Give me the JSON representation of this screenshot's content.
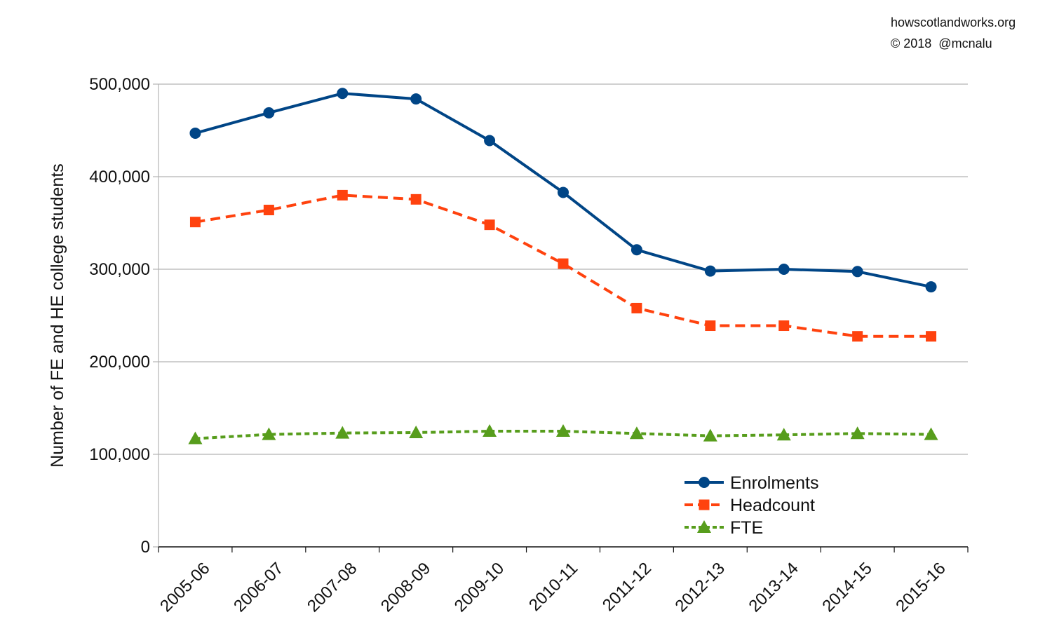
{
  "credits": {
    "site": "howscotlandworks.org",
    "copyright": "© 2018  @mcnalu"
  },
  "chart_data": {
    "type": "line",
    "title": "",
    "xlabel": "",
    "ylabel": "Number of FE and HE college students",
    "categories": [
      "2005-06",
      "2006-07",
      "2007-08",
      "2008-09",
      "2009-10",
      "2010-11",
      "2011-12",
      "2012-13",
      "2013-14",
      "2014-15",
      "2015-16"
    ],
    "ylim": [
      0,
      500000
    ],
    "yticks": [
      0,
      100000,
      200000,
      300000,
      400000,
      500000
    ],
    "ytick_labels": [
      "0",
      "100,000",
      "200,000",
      "300,000",
      "400,000",
      "500,000"
    ],
    "grid": true,
    "legend_position": "bottom-right",
    "series": [
      {
        "name": "Enrolments",
        "color": "#004586",
        "marker": "circle",
        "line_style": "solid",
        "values": [
          447000,
          469000,
          490000,
          484000,
          439000,
          383000,
          321000,
          298000,
          300000,
          297500,
          281000
        ]
      },
      {
        "name": "Headcount",
        "color": "#ff420e",
        "marker": "square",
        "line_style": "dashed",
        "values": [
          351000,
          364000,
          380000,
          375500,
          348000,
          306000,
          258000,
          239000,
          239000,
          227500,
          227500
        ]
      },
      {
        "name": "FTE",
        "color": "#579d1c",
        "marker": "triangle",
        "line_style": "dotted",
        "values": [
          117000,
          121500,
          123000,
          123500,
          125000,
          125000,
          122500,
          120000,
          121000,
          122500,
          121500
        ]
      }
    ]
  }
}
